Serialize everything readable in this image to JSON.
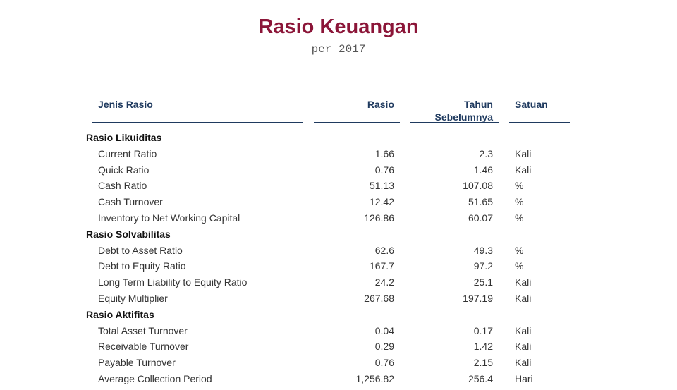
{
  "title": "Rasio Keuangan",
  "subtitle": "per 2017",
  "columns": {
    "jenis": "Jenis Rasio",
    "rasio": "Rasio",
    "prev_line1": "Tahun",
    "prev_line2": "Sebelumnya",
    "satuan": "Satuan"
  },
  "groups": [
    {
      "name": "Rasio Likuiditas",
      "items": [
        {
          "name": "Current Ratio",
          "rasio": "1.66",
          "prev": "2.3",
          "unit": "Kali"
        },
        {
          "name": "Quick Ratio",
          "rasio": "0.76",
          "prev": "1.46",
          "unit": "Kali"
        },
        {
          "name": "Cash Ratio",
          "rasio": "51.13",
          "prev": "107.08",
          "unit": "%"
        },
        {
          "name": "Cash Turnover",
          "rasio": "12.42",
          "prev": "51.65",
          "unit": "%"
        },
        {
          "name": "Inventory to Net Working Capital",
          "rasio": "126.86",
          "prev": "60.07",
          "unit": "%"
        }
      ]
    },
    {
      "name": "Rasio Solvabilitas",
      "items": [
        {
          "name": "Debt to Asset Ratio",
          "rasio": "62.6",
          "prev": "49.3",
          "unit": "%"
        },
        {
          "name": "Debt to Equity Ratio",
          "rasio": "167.7",
          "prev": "97.2",
          "unit": "%"
        },
        {
          "name": "Long Term Liability to Equity Ratio",
          "rasio": "24.2",
          "prev": "25.1",
          "unit": "Kali"
        },
        {
          "name": "Equity Multiplier",
          "rasio": "267.68",
          "prev": "197.19",
          "unit": "Kali"
        }
      ]
    },
    {
      "name": "Rasio Aktifitas",
      "items": [
        {
          "name": "Total Asset Turnover",
          "rasio": "0.04",
          "prev": "0.17",
          "unit": "Kali"
        },
        {
          "name": "Receivable Turnover",
          "rasio": "0.29",
          "prev": "1.42",
          "unit": "Kali"
        },
        {
          "name": "Payable Turnover",
          "rasio": "0.76",
          "prev": "2.15",
          "unit": "Kali"
        },
        {
          "name": "Average Collection Period",
          "rasio": "1,256.82",
          "prev": "256.4",
          "unit": "Hari"
        }
      ]
    }
  ]
}
